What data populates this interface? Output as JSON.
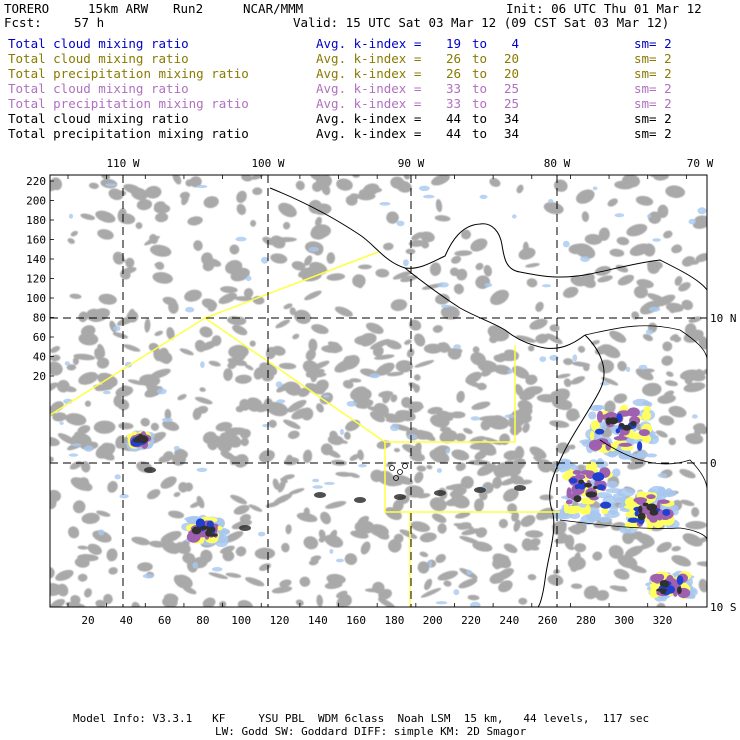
{
  "header": {
    "model": "TORERO",
    "resolution": "15km ARW",
    "run": "Run2",
    "org": "NCAR/MMM",
    "init": "Init: 06 UTC Thu 01 Mar 12",
    "fcst_label": "Fcst:",
    "fcst_value": "57 h",
    "valid": "Valid: 15 UTC Sat 03 Mar 12 (09 CST Sat 03 Mar 12)"
  },
  "legend": [
    {
      "name": "Total cloud mixing ratio",
      "kindex": "Avg. k-index =",
      "k1": "19",
      "to": "to",
      "k2": "4",
      "sm": "sm= 2",
      "color": "#0000c8"
    },
    {
      "name": "Total cloud mixing ratio",
      "kindex": "Avg. k-index =",
      "k1": "26",
      "to": "to",
      "k2": "20",
      "sm": "sm= 2",
      "color": "#8a7a00"
    },
    {
      "name": "Total precipitation mixing ratio",
      "kindex": "Avg. k-index =",
      "k1": "26",
      "to": "to",
      "k2": "20",
      "sm": "sm= 2",
      "color": "#8a7a00"
    },
    {
      "name": "Total cloud mixing ratio",
      "kindex": "Avg. k-index =",
      "k1": "33",
      "to": "to",
      "k2": "25",
      "sm": "sm= 2",
      "color": "#b070c0"
    },
    {
      "name": "Total precipitation mixing ratio",
      "kindex": "Avg. k-index =",
      "k1": "33",
      "to": "to",
      "k2": "25",
      "sm": "sm= 2",
      "color": "#b070c0"
    },
    {
      "name": "Total cloud mixing ratio",
      "kindex": "Avg. k-index =",
      "k1": "44",
      "to": "to",
      "k2": "34",
      "sm": "sm= 2",
      "color": "#000000"
    },
    {
      "name": "Total precipitation mixing ratio",
      "kindex": "Avg. k-index =",
      "k1": "44",
      "to": "to",
      "k2": "34",
      "sm": "sm= 2",
      "color": "#000000"
    }
  ],
  "map": {
    "lon_labels": [
      "110 W",
      "100 W",
      "90 W",
      "80 W",
      "70 W"
    ],
    "lat_labels": [
      "10 N",
      "0",
      "10 S"
    ],
    "y_ticks": [
      "220",
      "200",
      "180",
      "160",
      "140",
      "120",
      "100",
      "80",
      "60",
      "40",
      "20"
    ],
    "x_ticks": [
      "20",
      "40",
      "60",
      "80",
      "100",
      "120",
      "140",
      "160",
      "180",
      "200",
      "220",
      "240",
      "260",
      "280",
      "300",
      "320"
    ],
    "domain_color": "#ffff40",
    "colors": {
      "gray": "#9a9a9a",
      "dark": "#303030",
      "blue": "#2040d0",
      "lightblue": "#a8c8f0",
      "yellow": "#ffff60",
      "purple": "#a060b0"
    }
  },
  "footer": {
    "line1": "Model Info: V3.3.1   KF     YSU PBL  WDM 6class  Noah LSM  15 km,   44 levels,  117 sec",
    "line2": "LW: Godd SW: Goddard DIFF: simple KM: 2D Smagor"
  }
}
